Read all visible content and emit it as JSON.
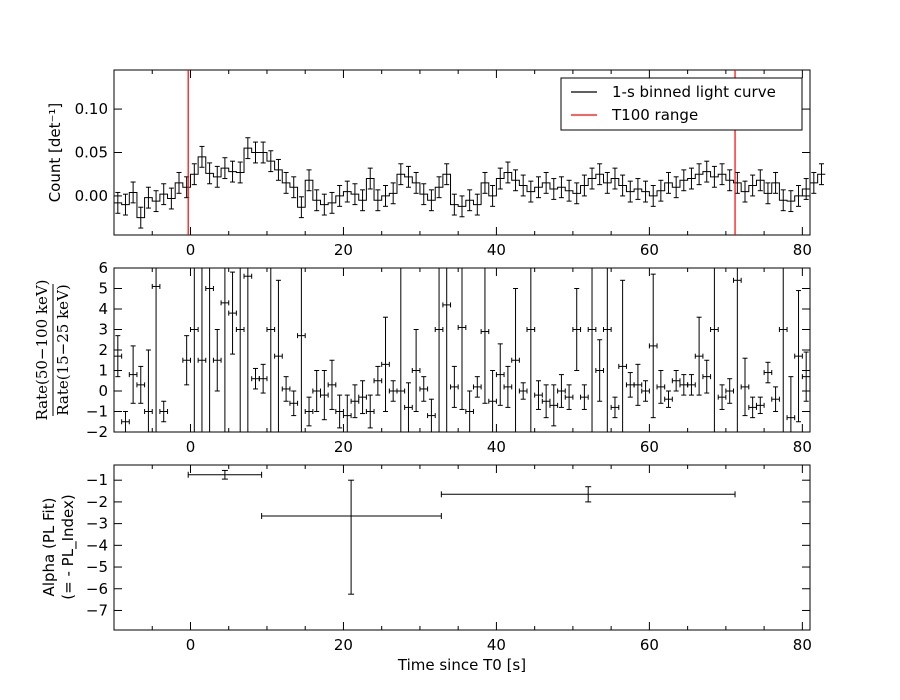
{
  "chart_data": [
    {
      "type": "line",
      "id": "count",
      "xlabel": "",
      "ylabel": "Count [det⁻¹]",
      "xlim": [
        -10,
        81
      ],
      "ylim": [
        -0.045,
        0.145
      ],
      "xticks": [
        0,
        20,
        40,
        60,
        80
      ],
      "yticks": [
        0.0,
        0.05,
        0.1
      ],
      "ytick_labels": [
        "0.00",
        "0.05",
        "0.10"
      ],
      "step_series": {
        "name": "1-s binned light curve",
        "color": "#000000",
        "x_start": -10,
        "bin_width": 1,
        "values": [
          -0.008,
          -0.01,
          0.004,
          -0.025,
          -0.002,
          -0.006,
          0.002,
          -0.003,
          0.015,
          0.01,
          0.025,
          0.045,
          0.026,
          0.022,
          0.032,
          0.028,
          0.027,
          0.055,
          0.05,
          0.05,
          0.04,
          0.03,
          0.015,
          0.01,
          -0.013,
          0.018,
          -0.005,
          -0.01,
          -0.008,
          0.0,
          0.005,
          0.002,
          -0.005,
          0.02,
          -0.005,
          0.0,
          0.003,
          0.025,
          0.022,
          0.015,
          0.002,
          -0.005,
          0.01,
          0.025,
          -0.01,
          -0.012,
          -0.005,
          -0.01,
          0.015,
          0.0,
          0.02,
          0.027,
          0.018,
          0.012,
          0.005,
          0.01,
          0.015,
          0.008,
          0.01,
          0.006,
          0.003,
          0.012,
          0.02,
          0.025,
          0.015,
          0.02,
          0.012,
          0.005,
          0.008,
          0.005,
          0.0,
          0.006,
          0.015,
          0.01,
          0.018,
          0.02,
          0.025,
          0.028,
          0.022,
          0.025,
          0.018,
          0.015,
          0.005,
          0.012,
          0.018,
          0.003,
          0.015,
          -0.005,
          -0.006,
          0.0,
          0.008,
          0.015,
          0.025
        ],
        "errors": 0.012
      },
      "vlines": {
        "name": "T100 range",
        "color": "#ff0000",
        "x": [
          -0.3,
          71.2
        ]
      },
      "legend": {
        "location": "top-right",
        "entries": [
          "1-s binned light curve",
          "T100 range"
        ]
      }
    },
    {
      "type": "scatter",
      "id": "ratio",
      "xlabel": "",
      "ylabel": "Rate(50−100 keV) / Rate(15−25 keV)",
      "ylabel_num": "Rate(50−100 keV)",
      "ylabel_den": "Rate(15−25 keV)",
      "xlim": [
        -10,
        81
      ],
      "ylim": [
        -2,
        6
      ],
      "xticks": [
        0,
        20,
        40,
        60,
        80
      ],
      "yticks": [
        -2,
        -1,
        0,
        1,
        2,
        3,
        4,
        5,
        6
      ],
      "points": [
        [
          -9.5,
          1.7,
          1.0
        ],
        [
          -8.5,
          -1.5,
          0.5
        ],
        [
          -7.5,
          0.8,
          1.4
        ],
        [
          -6.5,
          0.3,
          0.9
        ],
        [
          -5.5,
          -1.0,
          3.0
        ],
        [
          -4.5,
          5.1,
          8.0
        ],
        [
          -3.5,
          -1.0,
          0.5
        ],
        [
          -0.5,
          1.5,
          1.2
        ],
        [
          0.5,
          3.0,
          8.0
        ],
        [
          1.5,
          1.5,
          8.0
        ],
        [
          2.5,
          5.0,
          9.0
        ],
        [
          3.5,
          1.5,
          1.5
        ],
        [
          4.5,
          4.3,
          8.0
        ],
        [
          5.5,
          3.8,
          2.0
        ],
        [
          6.5,
          3.0,
          8.0
        ],
        [
          7.5,
          5.6,
          8.0
        ],
        [
          8.5,
          0.6,
          0.5
        ],
        [
          9.5,
          0.6,
          0.7
        ],
        [
          10.5,
          3.0,
          8.0
        ],
        [
          11.5,
          1.7,
          3.7
        ],
        [
          12.5,
          0.1,
          0.6
        ],
        [
          13.5,
          -0.6,
          0.6
        ],
        [
          14.5,
          2.7,
          8.0
        ],
        [
          15.5,
          -1.0,
          0.7
        ],
        [
          16.5,
          0.0,
          1.0
        ],
        [
          17.5,
          -0.2,
          1.2
        ],
        [
          18.5,
          0.3,
          1.2
        ],
        [
          19.5,
          -1.0,
          0.8
        ],
        [
          20.5,
          -1.2,
          1.0
        ],
        [
          21.5,
          -0.5,
          0.8
        ],
        [
          22.5,
          -0.3,
          0.8
        ],
        [
          23.5,
          -1.0,
          0.8
        ],
        [
          24.5,
          0.5,
          0.7
        ],
        [
          25.5,
          1.3,
          2.3
        ],
        [
          26.5,
          0.0,
          0.5
        ],
        [
          27.5,
          0.0,
          8.0
        ],
        [
          28.5,
          -0.8,
          1.2
        ],
        [
          29.5,
          1.0,
          2.0
        ],
        [
          30.5,
          0.1,
          0.6
        ],
        [
          31.5,
          -1.2,
          0.8
        ],
        [
          32.5,
          3.0,
          8.0
        ],
        [
          33.5,
          4.2,
          8.0
        ],
        [
          34.5,
          0.2,
          1.0
        ],
        [
          35.5,
          3.1,
          4.0
        ],
        [
          36.5,
          -1.0,
          1.0
        ],
        [
          37.5,
          0.2,
          0.5
        ],
        [
          38.5,
          2.9,
          3.5
        ],
        [
          39.5,
          -0.5,
          1.5
        ],
        [
          40.5,
          0.8,
          1.5
        ],
        [
          41.5,
          0.2,
          1.0
        ],
        [
          42.5,
          1.5,
          3.5
        ],
        [
          43.5,
          0.0,
          0.4
        ],
        [
          44.5,
          3.0,
          8.0
        ],
        [
          45.5,
          -0.2,
          0.7
        ],
        [
          46.5,
          -0.5,
          0.8
        ],
        [
          47.5,
          -0.7,
          1.0
        ],
        [
          48.5,
          0.0,
          0.8
        ],
        [
          49.5,
          -0.3,
          0.6
        ],
        [
          50.5,
          3.0,
          2.0
        ],
        [
          51.5,
          -0.3,
          0.6
        ],
        [
          52.5,
          3.0,
          8.0
        ],
        [
          53.5,
          1.0,
          1.5
        ],
        [
          54.5,
          3.0,
          8.0
        ],
        [
          55.5,
          -0.8,
          0.5
        ],
        [
          56.5,
          1.2,
          4.2
        ],
        [
          57.5,
          0.3,
          0.6
        ],
        [
          58.5,
          0.3,
          1.0
        ],
        [
          59.5,
          0.0,
          0.5
        ],
        [
          60.5,
          2.2,
          3.5
        ],
        [
          61.5,
          0.2,
          0.8
        ],
        [
          62.5,
          -0.4,
          0.4
        ],
        [
          63.5,
          0.5,
          0.5
        ],
        [
          64.5,
          0.3,
          0.5
        ],
        [
          65.5,
          0.3,
          0.5
        ],
        [
          66.5,
          1.7,
          1.9
        ],
        [
          67.5,
          0.7,
          0.8
        ],
        [
          68.5,
          3.0,
          8.0
        ],
        [
          69.5,
          -0.3,
          0.6
        ],
        [
          70.5,
          0.0,
          0.6
        ],
        [
          71.5,
          5.4,
          8.0
        ],
        [
          72.5,
          0.2,
          1.4
        ],
        [
          73.5,
          -0.8,
          0.5
        ],
        [
          74.5,
          -0.7,
          0.4
        ],
        [
          75.5,
          0.9,
          0.5
        ],
        [
          76.5,
          -0.4,
          0.6
        ],
        [
          77.5,
          3.0,
          8.0
        ],
        [
          78.5,
          -1.3,
          2.0
        ],
        [
          79.5,
          1.7,
          3.2
        ],
        [
          80.5,
          0.7,
          1.2
        ]
      ]
    },
    {
      "type": "scatter",
      "id": "alpha",
      "xlabel": "Time since T0 [s]",
      "ylabel": "Alpha (PL Fit)",
      "ylabel2": "(= - PL_Index)",
      "xlim": [
        -10,
        81
      ],
      "ylim": [
        -7.9,
        -0.3
      ],
      "xticks": [
        0,
        20,
        40,
        60,
        80
      ],
      "yticks": [
        -1,
        -2,
        -3,
        -4,
        -5,
        -6,
        -7
      ],
      "points": [
        {
          "x": 4.5,
          "y": -0.75,
          "x_lo": -0.3,
          "x_hi": 9.3,
          "y_lo": -0.95,
          "y_hi": -0.55
        },
        {
          "x": 21.0,
          "y": -2.65,
          "x_lo": 9.3,
          "x_hi": 32.8,
          "y_lo": -6.25,
          "y_hi": -1.0
        },
        {
          "x": 52.0,
          "y": -1.65,
          "x_lo": 32.8,
          "x_hi": 71.2,
          "y_lo": -2.0,
          "y_hi": -1.3
        }
      ]
    }
  ]
}
